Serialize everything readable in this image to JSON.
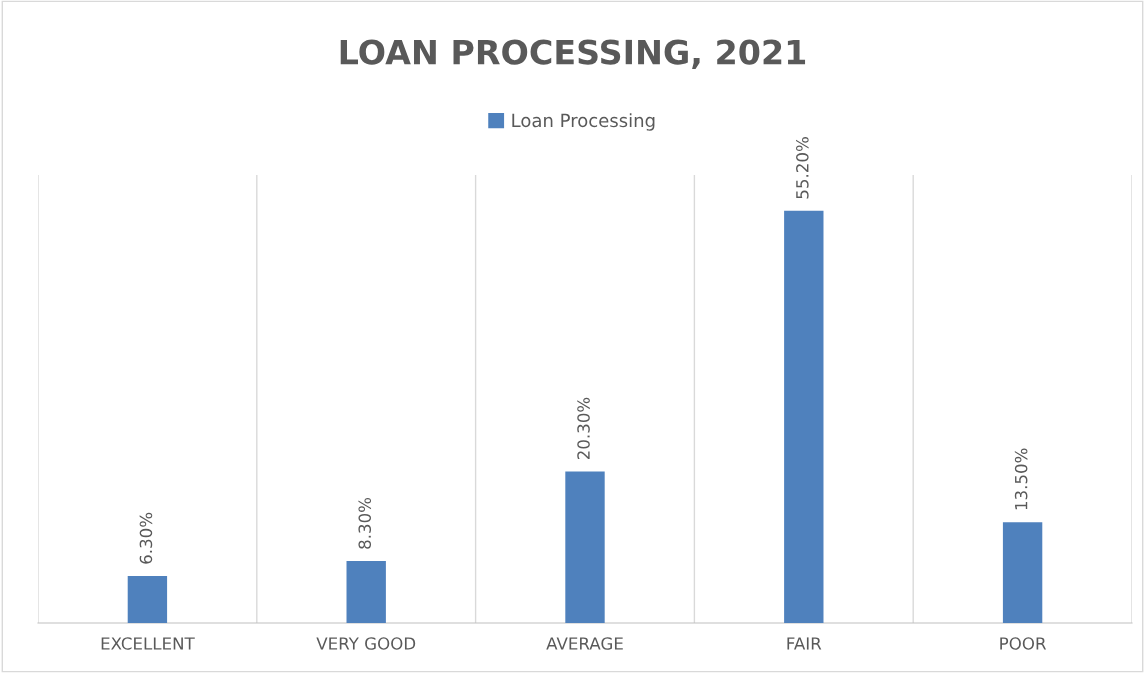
{
  "chart_data": {
    "type": "bar",
    "title": "LOAN PROCESSING, 2021",
    "categories": [
      "EXCELLENT",
      "VERY GOOD",
      "AVERAGE",
      "FAIR",
      "POOR"
    ],
    "series": [
      {
        "name": "Loan Processing",
        "color": "#4f81bd",
        "values": [
          6.3,
          8.3,
          20.3,
          55.2,
          13.5
        ],
        "value_labels": [
          "6.30%",
          "8.30%",
          "20.30%",
          "55.20%",
          "13.50%"
        ]
      }
    ],
    "grid": "x",
    "legend": "top",
    "tick_labels": "x"
  }
}
